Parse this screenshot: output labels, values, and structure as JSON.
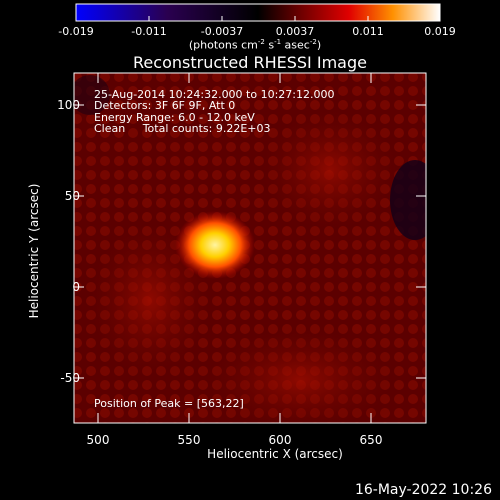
{
  "colorbar": {
    "ticks": [
      "-0.019",
      "-0.011",
      "-0.0037",
      "0.0037",
      "0.011",
      "0.019"
    ],
    "units_prefix": "(photons cm",
    "units_exp1": "-2",
    "units_mid1": " s",
    "units_exp2": "-1",
    "units_mid2": " asec",
    "units_exp3": "-2",
    "units_suffix": ")"
  },
  "plot": {
    "title": "Reconstructed RHESSI Image",
    "xlabel": "Heliocentric X (arcsec)",
    "ylabel": "Heliocentric Y (arcsec)",
    "x_ticks": [
      "500",
      "550",
      "600",
      "650"
    ],
    "y_ticks": [
      "100",
      "50",
      "0",
      "-50"
    ],
    "xlim": [
      486,
      680
    ],
    "ylim": [
      -74,
      119
    ]
  },
  "annotations": {
    "time_range": "25-Aug-2014 10:24:32.000 to 10:27:12.000",
    "detectors": "Detectors: 3F 6F 9F, Att 0",
    "energy": "Energy Range: 6.0 - 12.0 keV",
    "method": "Clean     Total counts: 9.22E+03",
    "peak": "Position of Peak = [563,22]"
  },
  "footer": {
    "date": "16-May-2022 10:26"
  }
}
